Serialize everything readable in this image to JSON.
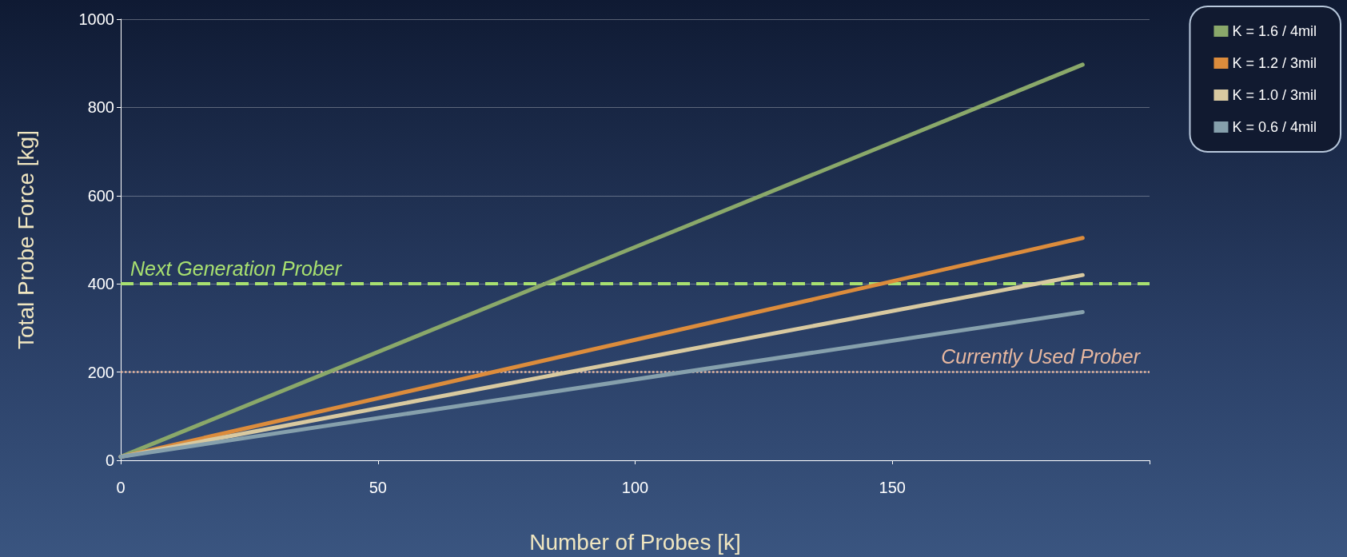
{
  "chart_data": {
    "type": "line",
    "xlabel": "Number of Probes [k]",
    "ylabel": "Total Probe Force [kg]",
    "xlim": [
      0,
      200
    ],
    "xticks": [
      0,
      50,
      100,
      150,
      {
        "value": 200,
        "label": null
      }
    ],
    "ylim": [
      0,
      1000
    ],
    "yticks": [
      0,
      200,
      400,
      600,
      800,
      1000
    ],
    "grid": "y",
    "legend": "top right",
    "marker": "none",
    "line_style": "solid",
    "x": [
      0,
      187
    ],
    "series": [
      {
        "name": "K = 1.6 / 4mil",
        "color": "#8aa86a",
        "values": [
          8,
          897
        ]
      },
      {
        "name": "K = 1.2 / 3mil",
        "color": "#dc8c3c",
        "values": [
          8,
          504
        ]
      },
      {
        "name": "K = 1.0 / 3mil",
        "color": "#d8c9a0",
        "values": [
          8,
          420
        ]
      },
      {
        "name": "K = 0.6 / 4mil",
        "color": "#86a0ac",
        "values": [
          8,
          336
        ]
      }
    ],
    "ref_lines": [
      {
        "axis": "y",
        "value": 400,
        "label": "Next Generation Prober",
        "color": "#a8e070",
        "line_style": "dashed"
      },
      {
        "axis": "y",
        "value": 200,
        "label": "Currently Used Prober",
        "color": "#e8b8a0",
        "line_style": "dotted"
      }
    ]
  }
}
